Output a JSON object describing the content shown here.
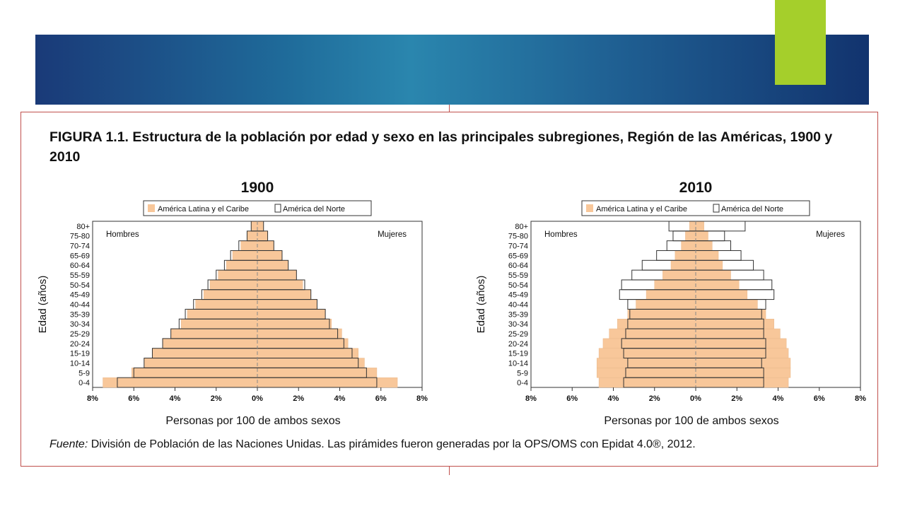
{
  "figure": {
    "title": "FIGURA 1.1. Estructura de la población por edad y sexo en las principales subregiones, Región de las Américas, 1900 y 2010",
    "source_label": "Fuente:",
    "source_text": " División de Población de las Naciones Unidas. Las pirámides fueron generadas por la OPS/OMS con Epidat 4.0®, 2012."
  },
  "colors": {
    "latin": "#f8c79a",
    "north_fill": "#ffffff",
    "north_stroke": "#333333",
    "frame": "#c0504d"
  },
  "chart_data": [
    {
      "type": "bar",
      "title": "1900",
      "ylabel": "Edad (años)",
      "xlabel": "Personas por 100 de ambos sexos",
      "left_label": "Hombres",
      "right_label": "Mujeres",
      "legend": [
        "América Latina y el Caribe",
        "América del Norte"
      ],
      "legend_position": "top-center",
      "xticks": [
        "8%",
        "6%",
        "4%",
        "2%",
        "0%",
        "2%",
        "4%",
        "6%",
        "8%"
      ],
      "xlim": [
        -8,
        8
      ],
      "categories": [
        "0-4",
        "5-9",
        "10-14",
        "15-19",
        "20-24",
        "25-29",
        "30-34",
        "35-39",
        "40-44",
        "45-49",
        "50-54",
        "55-59",
        "60-64",
        "65-69",
        "70-74",
        "75-80",
        "80+"
      ],
      "series": [
        {
          "name": "América Latina y el Caribe",
          "men": [
            7.5,
            6.1,
            5.5,
            5.1,
            4.6,
            4.2,
            3.7,
            3.4,
            3.0,
            2.6,
            2.3,
            1.9,
            1.5,
            1.2,
            0.8,
            0.5,
            0.3
          ],
          "women": [
            6.8,
            5.8,
            5.2,
            4.9,
            4.4,
            4.1,
            3.6,
            3.3,
            2.9,
            2.6,
            2.2,
            1.9,
            1.5,
            1.2,
            0.8,
            0.5,
            0.3
          ]
        },
        {
          "name": "América del Norte",
          "men": [
            6.8,
            6.0,
            5.5,
            5.1,
            4.6,
            4.2,
            3.8,
            3.5,
            3.1,
            2.7,
            2.4,
            2.0,
            1.6,
            1.3,
            0.9,
            0.5,
            0.3
          ],
          "women": [
            5.8,
            5.3,
            4.9,
            4.6,
            4.2,
            3.9,
            3.5,
            3.3,
            2.9,
            2.6,
            2.3,
            1.9,
            1.5,
            1.2,
            0.8,
            0.5,
            0.3
          ]
        }
      ]
    },
    {
      "type": "bar",
      "title": "2010",
      "ylabel": "Edad (años)",
      "xlabel": "Personas por 100 de ambos sexos",
      "left_label": "Hombres",
      "right_label": "Mujeres",
      "legend": [
        "América Latina y el Caribe",
        "América del Norte"
      ],
      "legend_position": "top-center",
      "xticks": [
        "8%",
        "6%",
        "4%",
        "2%",
        "0%",
        "2%",
        "4%",
        "6%",
        "8%"
      ],
      "xlim": [
        -8,
        8
      ],
      "categories": [
        "0-4",
        "5-9",
        "10-14",
        "15-19",
        "20-24",
        "25-29",
        "30-34",
        "35-39",
        "40-44",
        "45-49",
        "50-54",
        "55-59",
        "60-64",
        "65-69",
        "70-74",
        "75-80",
        "80+"
      ],
      "series": [
        {
          "name": "América Latina y el Caribe",
          "men": [
            4.7,
            4.8,
            4.8,
            4.7,
            4.5,
            4.2,
            3.8,
            3.3,
            2.9,
            2.4,
            2.0,
            1.6,
            1.2,
            1.0,
            0.7,
            0.5,
            0.3
          ],
          "women": [
            4.5,
            4.6,
            4.6,
            4.5,
            4.4,
            4.1,
            3.8,
            3.4,
            3.0,
            2.5,
            2.1,
            1.7,
            1.3,
            1.1,
            0.8,
            0.6,
            0.4
          ]
        },
        {
          "name": "América del Norte",
          "men": [
            3.5,
            3.4,
            3.3,
            3.5,
            3.6,
            3.4,
            3.3,
            3.2,
            3.3,
            3.7,
            3.6,
            3.1,
            2.6,
            1.9,
            1.4,
            1.1,
            1.3
          ],
          "women": [
            3.3,
            3.3,
            3.2,
            3.4,
            3.4,
            3.3,
            3.3,
            3.2,
            3.4,
            3.8,
            3.7,
            3.3,
            2.8,
            2.2,
            1.7,
            1.4,
            2.4
          ]
        }
      ]
    }
  ]
}
